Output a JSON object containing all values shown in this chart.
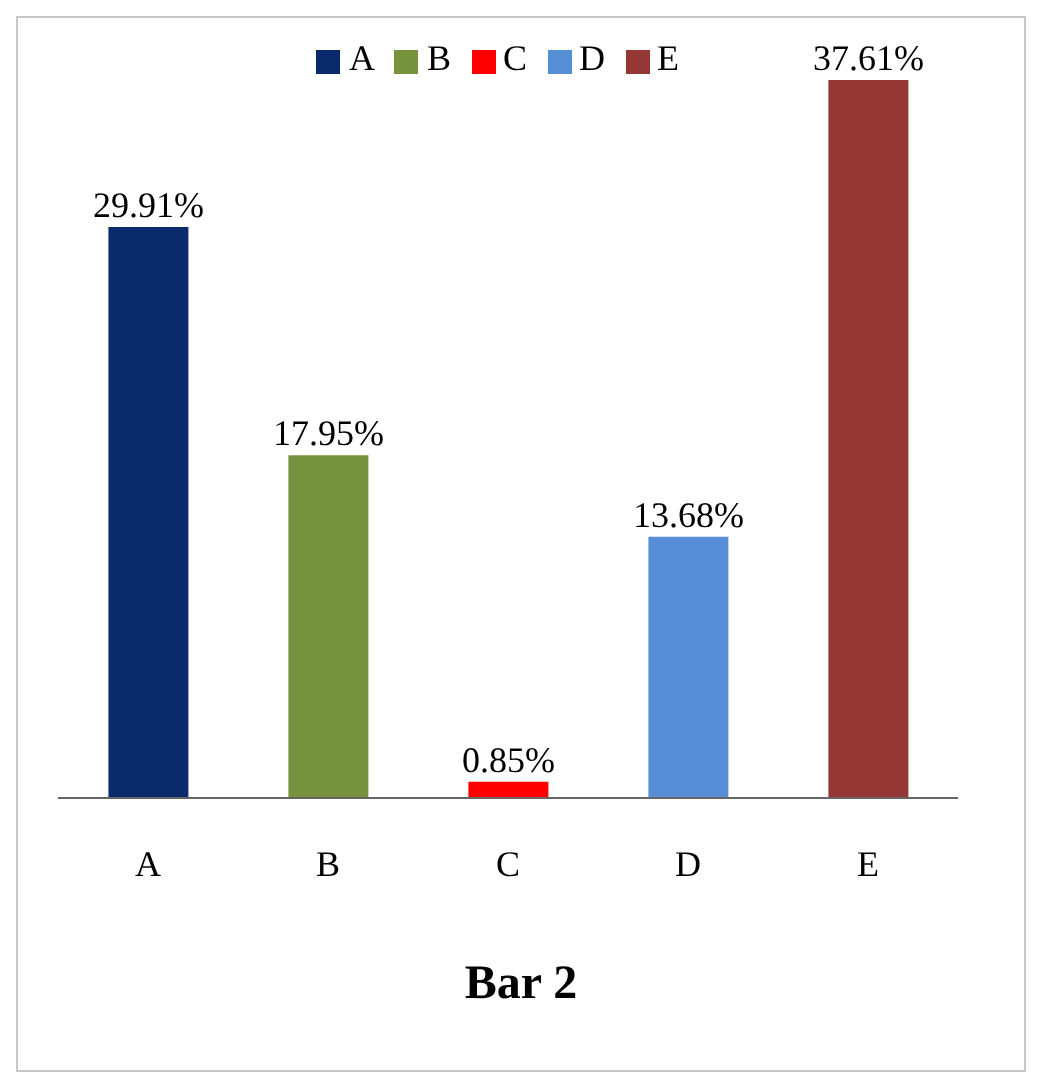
{
  "chart_data": {
    "type": "bar",
    "title": "Bar 2",
    "categories": [
      "A",
      "B",
      "C",
      "D",
      "E"
    ],
    "stacked": true,
    "legend": "top",
    "grid": false,
    "tick_labels": "x",
    "series": [
      {
        "name": "A",
        "color": "#0b2a6b",
        "values": [
          29.91,
          null,
          null,
          null,
          null
        ],
        "value_labels": [
          "29.91%",
          null,
          null,
          null,
          null
        ]
      },
      {
        "name": "B",
        "color": "#76923c",
        "values": [
          null,
          17.95,
          null,
          null,
          null
        ],
        "value_labels": [
          null,
          "17.95%",
          null,
          null,
          null
        ]
      },
      {
        "name": "C",
        "color": "#ff0000",
        "values": [
          null,
          null,
          0.85,
          null,
          null
        ],
        "value_labels": [
          null,
          null,
          "0.85%",
          null,
          null
        ]
      },
      {
        "name": "D",
        "color": "#558ed5",
        "values": [
          null,
          null,
          null,
          13.68,
          null
        ],
        "value_labels": [
          null,
          null,
          null,
          "13.68%",
          null
        ]
      },
      {
        "name": "E",
        "color": "#953735",
        "values": [
          null,
          null,
          null,
          null,
          37.61
        ],
        "value_labels": [
          null,
          null,
          null,
          null,
          "37.61%"
        ]
      }
    ]
  }
}
